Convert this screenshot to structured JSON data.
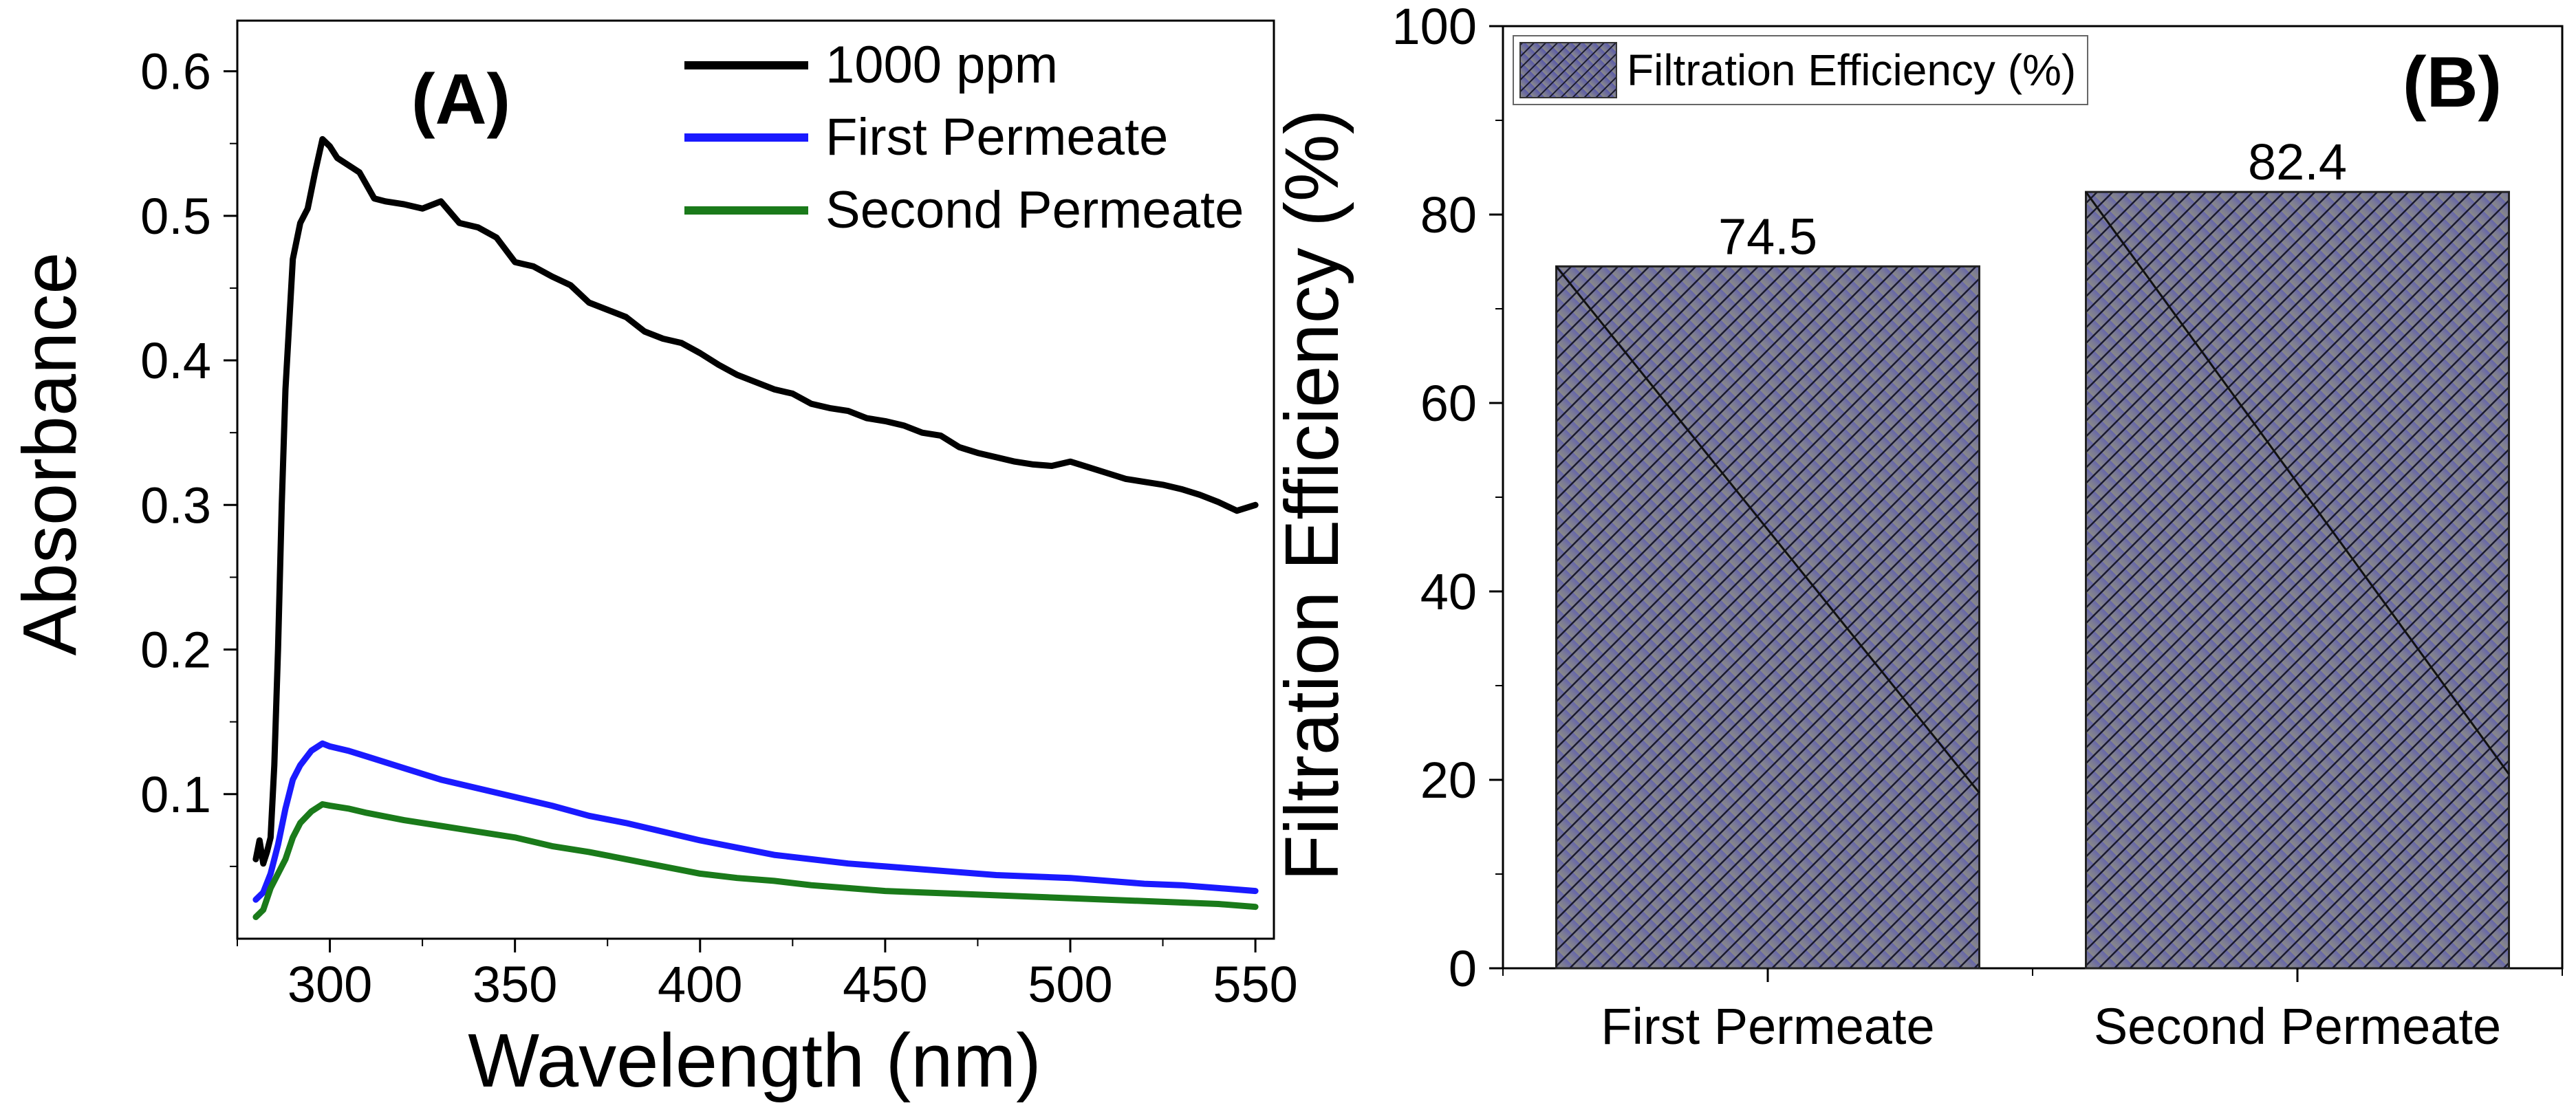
{
  "chart_data": [
    {
      "panel": "(A)",
      "type": "line",
      "title": "",
      "xlabel": "Wavelength (nm)",
      "ylabel": "Absorbance",
      "xlim": [
        275,
        555
      ],
      "ylim": [
        0.0,
        0.635
      ],
      "xticks": [
        300,
        350,
        400,
        450,
        500,
        550
      ],
      "yticks": [
        0.1,
        0.2,
        0.3,
        0.4,
        0.5,
        0.6
      ],
      "legend_position": "top-right",
      "grid": false,
      "series": [
        {
          "name": "1000 ppm",
          "color": "#000000",
          "x": [
            280,
            281,
            282,
            283,
            284,
            285,
            286,
            287,
            288,
            290,
            292,
            294,
            296,
            298,
            300,
            302,
            305,
            308,
            312,
            315,
            320,
            325,
            330,
            335,
            340,
            345,
            350,
            355,
            360,
            365,
            370,
            375,
            380,
            385,
            390,
            395,
            400,
            405,
            410,
            415,
            420,
            425,
            430,
            435,
            440,
            445,
            450,
            455,
            460,
            465,
            470,
            475,
            480,
            485,
            490,
            495,
            500,
            505,
            510,
            515,
            520,
            525,
            530,
            535,
            540,
            545,
            550
          ],
          "y": [
            0.055,
            0.068,
            0.052,
            0.06,
            0.07,
            0.12,
            0.2,
            0.3,
            0.38,
            0.47,
            0.495,
            0.505,
            0.53,
            0.553,
            0.548,
            0.54,
            0.535,
            0.53,
            0.512,
            0.51,
            0.508,
            0.505,
            0.51,
            0.495,
            0.492,
            0.485,
            0.468,
            0.465,
            0.458,
            0.452,
            0.44,
            0.435,
            0.43,
            0.42,
            0.415,
            0.412,
            0.405,
            0.397,
            0.39,
            0.385,
            0.38,
            0.377,
            0.37,
            0.367,
            0.365,
            0.36,
            0.358,
            0.355,
            0.35,
            0.348,
            0.34,
            0.336,
            0.333,
            0.33,
            0.328,
            0.327,
            0.33,
            0.326,
            0.322,
            0.318,
            0.316,
            0.314,
            0.311,
            0.307,
            0.302,
            0.296,
            0.3
          ]
        },
        {
          "name": "First Permeate",
          "color": "#1a1aff",
          "x": [
            280,
            282,
            284,
            286,
            288,
            290,
            292,
            295,
            298,
            300,
            305,
            310,
            320,
            330,
            340,
            350,
            360,
            370,
            380,
            390,
            400,
            410,
            420,
            430,
            440,
            450,
            460,
            470,
            480,
            490,
            500,
            510,
            520,
            530,
            540,
            550
          ],
          "y": [
            0.027,
            0.032,
            0.045,
            0.065,
            0.09,
            0.11,
            0.12,
            0.13,
            0.135,
            0.133,
            0.13,
            0.126,
            0.118,
            0.11,
            0.104,
            0.098,
            0.092,
            0.085,
            0.08,
            0.074,
            0.068,
            0.063,
            0.058,
            0.055,
            0.052,
            0.05,
            0.048,
            0.046,
            0.044,
            0.043,
            0.042,
            0.04,
            0.038,
            0.037,
            0.035,
            0.033
          ]
        },
        {
          "name": "Second Permeate",
          "color": "#1a7a1a",
          "x": [
            280,
            282,
            284,
            286,
            288,
            290,
            292,
            295,
            298,
            300,
            305,
            310,
            320,
            330,
            340,
            350,
            360,
            370,
            380,
            390,
            400,
            410,
            420,
            430,
            440,
            450,
            460,
            470,
            480,
            490,
            500,
            510,
            520,
            530,
            540,
            550
          ],
          "y": [
            0.015,
            0.02,
            0.035,
            0.045,
            0.055,
            0.07,
            0.08,
            0.088,
            0.093,
            0.092,
            0.09,
            0.087,
            0.082,
            0.078,
            0.074,
            0.07,
            0.064,
            0.06,
            0.055,
            0.05,
            0.045,
            0.042,
            0.04,
            0.037,
            0.035,
            0.033,
            0.032,
            0.031,
            0.03,
            0.029,
            0.028,
            0.027,
            0.026,
            0.025,
            0.024,
            0.022
          ]
        }
      ]
    },
    {
      "panel": "(B)",
      "type": "bar",
      "title": "",
      "xlabel": "",
      "ylabel": "Filtration Efficiency (%)",
      "ylim": [
        0,
        100
      ],
      "yticks": [
        0,
        20,
        40,
        60,
        80,
        100
      ],
      "categories": [
        "First Permeate",
        "Second Permeate"
      ],
      "series": [
        {
          "name": "Filtration Efficiency (%)",
          "values": [
            74.5,
            82.4
          ]
        }
      ],
      "data_labels": [
        "74.5",
        "82.4"
      ],
      "legend_position": "top-left",
      "grid": false
    }
  ]
}
